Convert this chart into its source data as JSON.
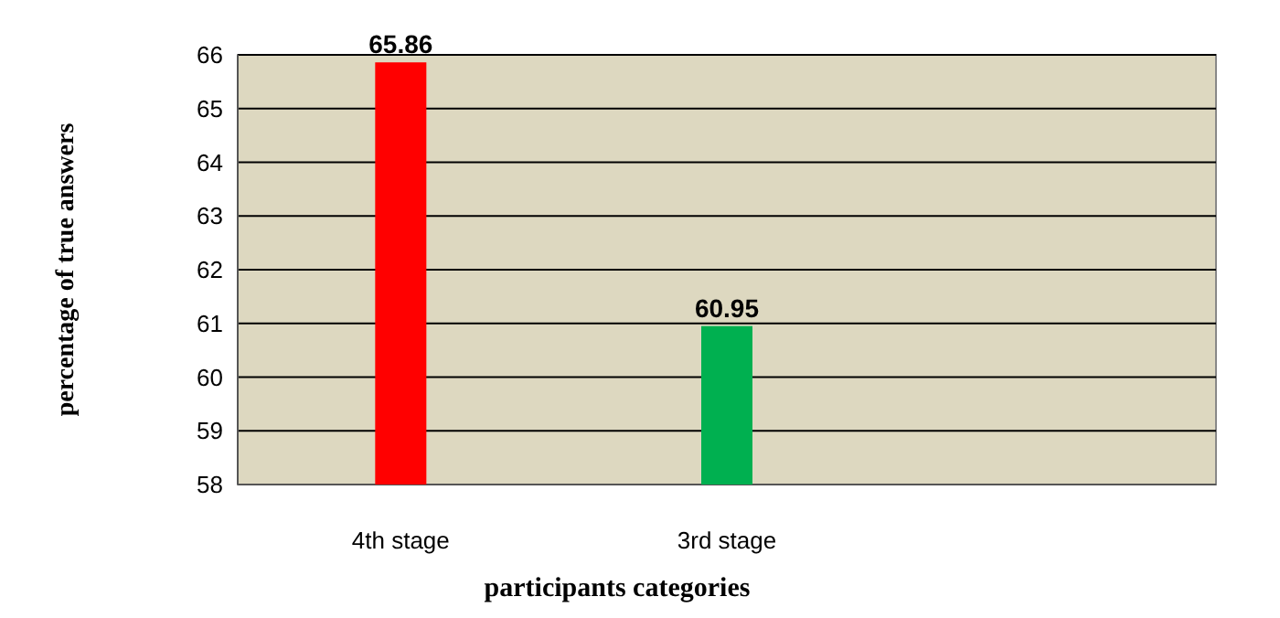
{
  "chart_data": {
    "type": "bar",
    "xlabel": "participants  categories",
    "ylabel": "percentage of true answers",
    "categories": [
      "4th stage",
      "3rd stage",
      null
    ],
    "values": [
      65.86,
      60.95,
      null
    ],
    "colors": [
      "#ff0000",
      "#00b050",
      null
    ],
    "ylim": [
      58,
      66
    ],
    "yticks": [
      58,
      59,
      60,
      61,
      62,
      63,
      64,
      65,
      66
    ],
    "grid": "y",
    "data_labels": true
  }
}
